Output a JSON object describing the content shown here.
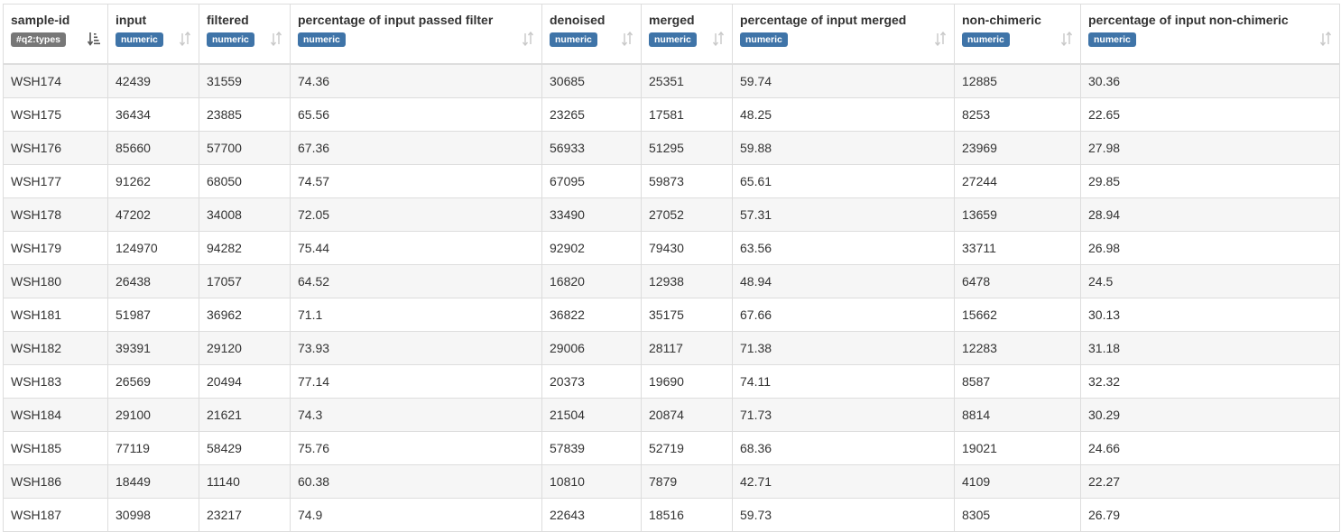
{
  "colors": {
    "numeric_badge": "#3f74a8",
    "types_badge": "#777777",
    "stripe": "#f6f6f6",
    "border": "#dddddd"
  },
  "columns": [
    {
      "label": "sample-id",
      "type": "#q2:types",
      "sort_icon": "sort-active-icon"
    },
    {
      "label": "input",
      "type": "numeric",
      "sort_icon": "sort-icon"
    },
    {
      "label": "filtered",
      "type": "numeric",
      "sort_icon": "sort-icon"
    },
    {
      "label": "percentage of input passed filter",
      "type": "numeric",
      "sort_icon": "sort-icon"
    },
    {
      "label": "denoised",
      "type": "numeric",
      "sort_icon": "sort-icon"
    },
    {
      "label": "merged",
      "type": "numeric",
      "sort_icon": "sort-icon"
    },
    {
      "label": "percentage of input merged",
      "type": "numeric",
      "sort_icon": "sort-icon"
    },
    {
      "label": "non-chimeric",
      "type": "numeric",
      "sort_icon": "sort-icon"
    },
    {
      "label": "percentage of input non-chimeric",
      "type": "numeric",
      "sort_icon": "sort-icon"
    }
  ],
  "rows": [
    [
      "WSH174",
      "42439",
      "31559",
      "74.36",
      "30685",
      "25351",
      "59.74",
      "12885",
      "30.36"
    ],
    [
      "WSH175",
      "36434",
      "23885",
      "65.56",
      "23265",
      "17581",
      "48.25",
      "8253",
      "22.65"
    ],
    [
      "WSH176",
      "85660",
      "57700",
      "67.36",
      "56933",
      "51295",
      "59.88",
      "23969",
      "27.98"
    ],
    [
      "WSH177",
      "91262",
      "68050",
      "74.57",
      "67095",
      "59873",
      "65.61",
      "27244",
      "29.85"
    ],
    [
      "WSH178",
      "47202",
      "34008",
      "72.05",
      "33490",
      "27052",
      "57.31",
      "13659",
      "28.94"
    ],
    [
      "WSH179",
      "124970",
      "94282",
      "75.44",
      "92902",
      "79430",
      "63.56",
      "33711",
      "26.98"
    ],
    [
      "WSH180",
      "26438",
      "17057",
      "64.52",
      "16820",
      "12938",
      "48.94",
      "6478",
      "24.5"
    ],
    [
      "WSH181",
      "51987",
      "36962",
      "71.1",
      "36822",
      "35175",
      "67.66",
      "15662",
      "30.13"
    ],
    [
      "WSH182",
      "39391",
      "29120",
      "73.93",
      "29006",
      "28117",
      "71.38",
      "12283",
      "31.18"
    ],
    [
      "WSH183",
      "26569",
      "20494",
      "77.14",
      "20373",
      "19690",
      "74.11",
      "8587",
      "32.32"
    ],
    [
      "WSH184",
      "29100",
      "21621",
      "74.3",
      "21504",
      "20874",
      "71.73",
      "8814",
      "30.29"
    ],
    [
      "WSH185",
      "77119",
      "58429",
      "75.76",
      "57839",
      "52719",
      "68.36",
      "19021",
      "24.66"
    ],
    [
      "WSH186",
      "18449",
      "11140",
      "60.38",
      "10810",
      "7879",
      "42.71",
      "4109",
      "22.27"
    ],
    [
      "WSH187",
      "30998",
      "23217",
      "74.9",
      "22643",
      "18516",
      "59.73",
      "8305",
      "26.79"
    ]
  ]
}
